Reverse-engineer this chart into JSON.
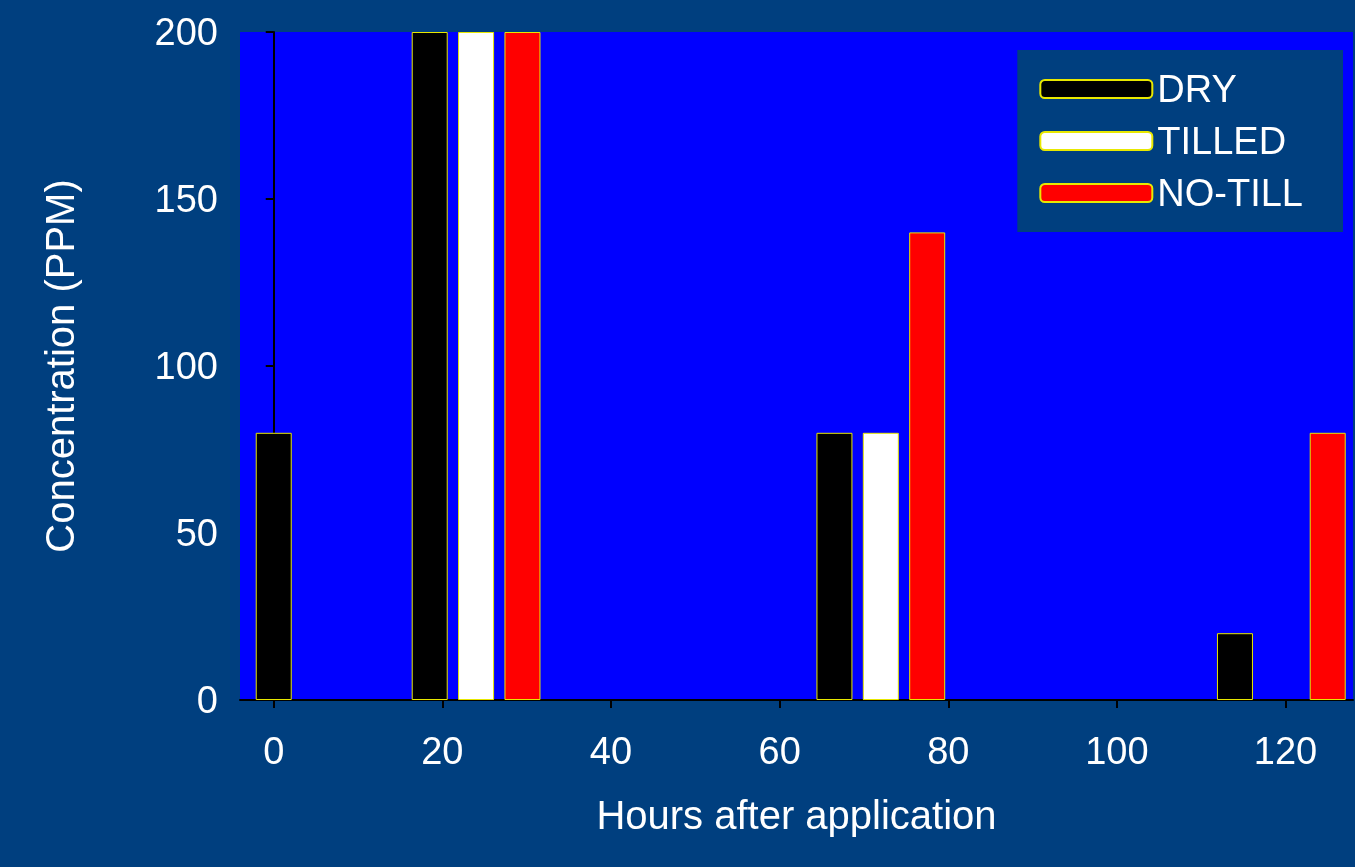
{
  "chart_data": {
    "type": "bar",
    "xlabel": "Hours after application",
    "ylabel": "Concentration (PPM)",
    "xlim": [
      -4,
      128
    ],
    "xticks": [
      0,
      20,
      40,
      60,
      80,
      100,
      120
    ],
    "ylim": [
      0,
      200
    ],
    "yticks": [
      0,
      50,
      100,
      150,
      200
    ],
    "legend": "top right",
    "series": [
      {
        "name": "DRY",
        "color": "#000000",
        "x": [
          0,
          18.5,
          66.5,
          114
        ],
        "values": [
          80,
          200,
          80,
          20
        ]
      },
      {
        "name": "TILLED",
        "color": "#ffffff",
        "x": [
          24,
          72
        ],
        "values": [
          200,
          80
        ]
      },
      {
        "name": "NO-TILL",
        "color": "#ff0000",
        "x": [
          29.5,
          77.5,
          125
        ],
        "values": [
          200,
          140,
          80
        ]
      }
    ]
  }
}
